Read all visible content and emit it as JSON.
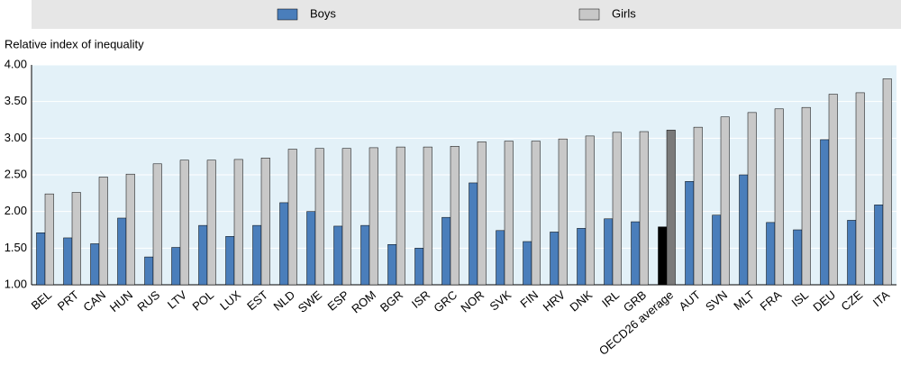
{
  "chart_data": {
    "type": "bar",
    "y_label": "Relative index of inequality",
    "categories": [
      "BEL",
      "PRT",
      "CAN",
      "HUN",
      "RUS",
      "LTV",
      "POL",
      "LUX",
      "EST",
      "NLD",
      "SWE",
      "ESP",
      "ROM",
      "BGR",
      "ISR",
      "GRC",
      "NOR",
      "SVK",
      "FIN",
      "HRV",
      "DNK",
      "IRL",
      "GRB",
      "OECD26 average",
      "AUT",
      "SVN",
      "MLT",
      "FRA",
      "ISL",
      "DEU",
      "CZE",
      "ITA"
    ],
    "series": [
      {
        "name": "Boys",
        "color": "#4a7ebb",
        "colors": [
          "#4a7ebb",
          "#4a7ebb",
          "#4a7ebb",
          "#4a7ebb",
          "#4a7ebb",
          "#4a7ebb",
          "#4a7ebb",
          "#4a7ebb",
          "#4a7ebb",
          "#4a7ebb",
          "#4a7ebb",
          "#4a7ebb",
          "#4a7ebb",
          "#4a7ebb",
          "#4a7ebb",
          "#4a7ebb",
          "#4a7ebb",
          "#4a7ebb",
          "#4a7ebb",
          "#4a7ebb",
          "#4a7ebb",
          "#4a7ebb",
          "#4a7ebb",
          "#000000",
          "#4a7ebb",
          "#4a7ebb",
          "#4a7ebb",
          "#4a7ebb",
          "#4a7ebb",
          "#4a7ebb",
          "#4a7ebb",
          "#4a7ebb"
        ],
        "values": [
          1.71,
          1.64,
          1.56,
          1.91,
          1.38,
          1.51,
          1.81,
          1.66,
          1.81,
          2.12,
          2.0,
          1.8,
          1.81,
          1.55,
          1.5,
          1.92,
          2.39,
          1.74,
          1.59,
          1.72,
          1.77,
          1.9,
          1.86,
          1.79,
          2.41,
          1.95,
          2.5,
          1.85,
          1.75,
          2.98,
          1.88,
          2.09
        ]
      },
      {
        "name": "Girls",
        "color": "#c8c8c8",
        "colors": [
          "#c8c8c8",
          "#c8c8c8",
          "#c8c8c8",
          "#c8c8c8",
          "#c8c8c8",
          "#c8c8c8",
          "#c8c8c8",
          "#c8c8c8",
          "#c8c8c8",
          "#c8c8c8",
          "#c8c8c8",
          "#c8c8c8",
          "#c8c8c8",
          "#c8c8c8",
          "#c8c8c8",
          "#c8c8c8",
          "#c8c8c8",
          "#c8c8c8",
          "#c8c8c8",
          "#c8c8c8",
          "#c8c8c8",
          "#c8c8c8",
          "#c8c8c8",
          "#7a7a7a",
          "#c8c8c8",
          "#c8c8c8",
          "#c8c8c8",
          "#c8c8c8",
          "#c8c8c8",
          "#c8c8c8",
          "#c8c8c8",
          "#c8c8c8"
        ],
        "values": [
          2.24,
          2.26,
          2.47,
          2.51,
          2.65,
          2.7,
          2.7,
          2.71,
          2.73,
          2.85,
          2.86,
          2.86,
          2.87,
          2.88,
          2.88,
          2.89,
          2.95,
          2.96,
          2.96,
          2.99,
          3.03,
          3.08,
          3.09,
          3.11,
          3.15,
          3.29,
          3.35,
          3.4,
          3.42,
          3.6,
          3.62,
          3.81
        ]
      }
    ],
    "ylim": [
      1,
      4
    ],
    "yticks": [
      {
        "value": 1,
        "label": "1.00"
      },
      {
        "value": 1.5,
        "label": "1.50"
      },
      {
        "value": 2,
        "label": "2.00"
      },
      {
        "value": 2.5,
        "label": "2.50"
      },
      {
        "value": 3,
        "label": "3.00"
      },
      {
        "value": 3.5,
        "label": "3.50"
      },
      {
        "value": 4,
        "label": "4.00"
      }
    ],
    "grid": true
  }
}
